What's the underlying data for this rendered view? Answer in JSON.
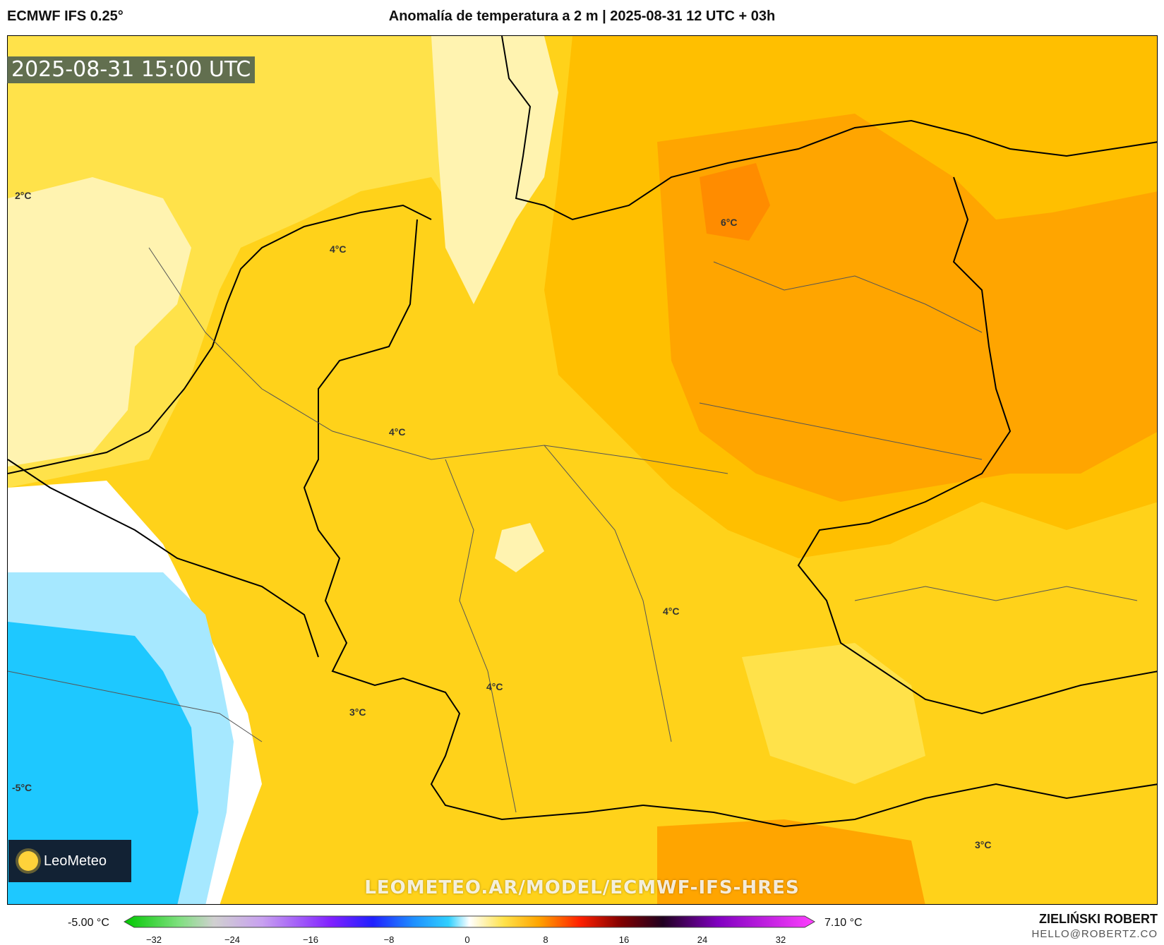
{
  "header": {
    "model": "ECMWF IFS 0.25°",
    "title": "Anomalía de temperatura a 2 m | 2025-08-31 12 UTC + 03h"
  },
  "map": {
    "timestamp": "2025-08-31 15:00 UTC",
    "watermark": "LEOMETEO.AR/MODEL/ECMWF-IFS-HRES",
    "logo_text": "LeoMeteo",
    "labels": [
      "2°C",
      "4°C",
      "6°C",
      "4°C",
      "4°C",
      "4°C",
      "3°C",
      "-5°C",
      "3°C"
    ]
  },
  "colorbar": {
    "min_label": "-5.00 °C",
    "max_label": "7.10 °C",
    "ticks": [
      "−32",
      "−24",
      "−16",
      "−8",
      "0",
      "8",
      "16",
      "24",
      "32"
    ]
  },
  "credit": {
    "name": "ZIELIŃSKI ROBERT",
    "email": "HELLO@ROBERTZ.CO"
  },
  "colors": {
    "warm_light": "#fff3b0",
    "warm": "#ffd21a",
    "warmer": "#ffbf00",
    "orange": "#ffa500",
    "deep_orange": "#ff8c00",
    "cold": "#1ec8ff",
    "cold_light": "#a6e8ff"
  }
}
